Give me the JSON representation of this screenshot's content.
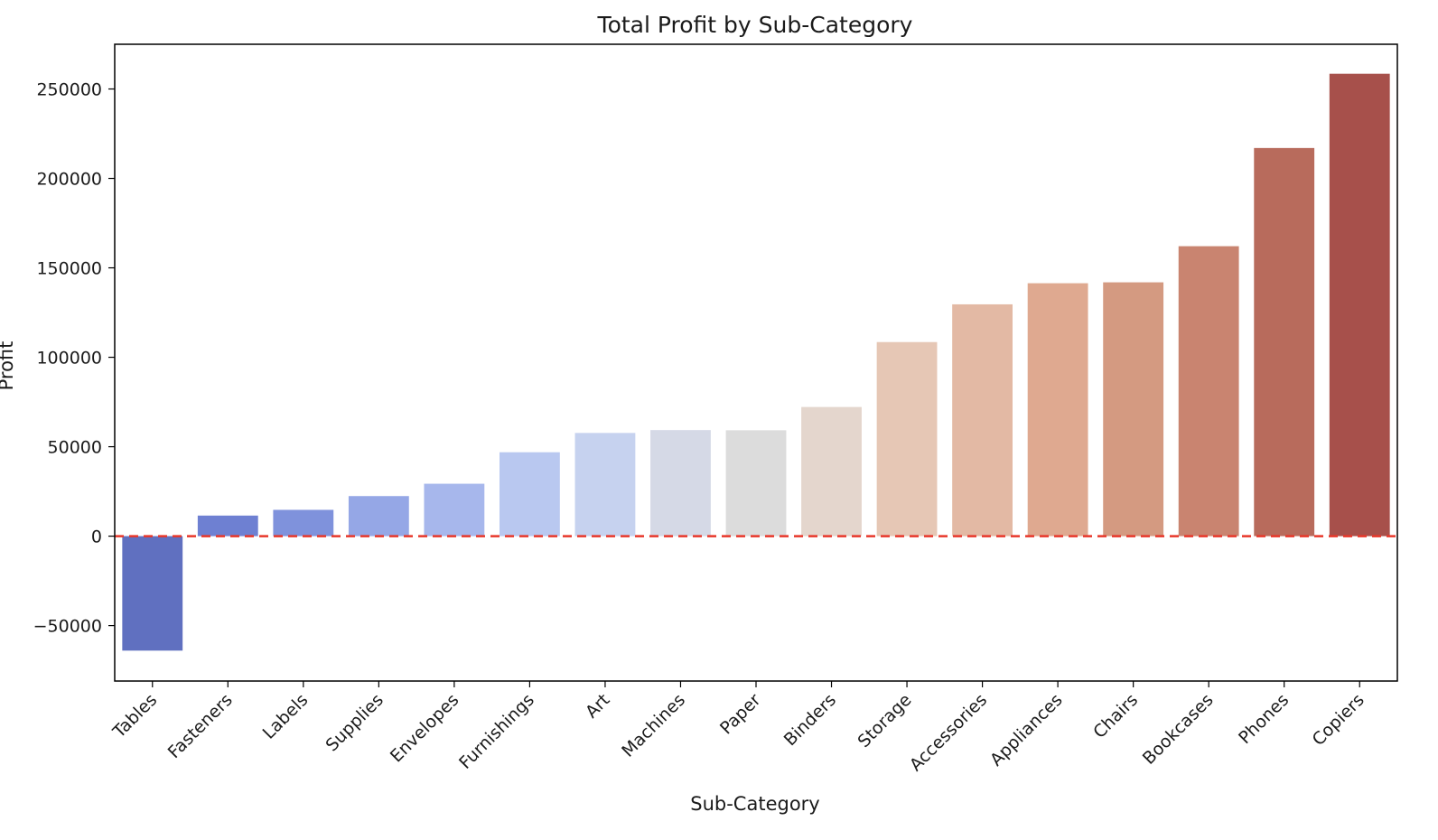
{
  "chart_data": {
    "type": "bar",
    "title": "Total Profit by Sub-Category",
    "xlabel": "Sub-Category",
    "ylabel": "Profit",
    "categories": [
      "Tables",
      "Fasteners",
      "Labels",
      "Supplies",
      "Envelopes",
      "Furnishings",
      "Art",
      "Machines",
      "Paper",
      "Binders",
      "Storage",
      "Accessories",
      "Appliances",
      "Chairs",
      "Bookcases",
      "Phones",
      "Copiers"
    ],
    "values": [
      -64000,
      11500,
      14700,
      22400,
      29300,
      46900,
      57700,
      59300,
      59200,
      72200,
      108500,
      129600,
      141400,
      141900,
      162100,
      217000,
      258500
    ],
    "ylim": [
      -81000,
      275000
    ],
    "yticks": [
      -50000,
      0,
      50000,
      100000,
      150000,
      200000,
      250000
    ],
    "ytick_labels": [
      "−50000",
      "0",
      "50000",
      "100000",
      "150000",
      "200000",
      "250000"
    ],
    "reference_line": {
      "y": 0,
      "style": "dashed",
      "color": "#e8372a"
    },
    "bar_colors": [
      "#6070c0",
      "#6e80d2",
      "#7f92dc",
      "#95a7e6",
      "#a7b7ec",
      "#b9c8f0",
      "#c6d2ef",
      "#d5d9e6",
      "#dcdcdc",
      "#e4d6cd",
      "#e6c7b5",
      "#e3b9a4",
      "#dfa990",
      "#d49a81",
      "#c98470",
      "#b86b5c",
      "#a7504b"
    ],
    "grid": false,
    "legend": "none"
  }
}
